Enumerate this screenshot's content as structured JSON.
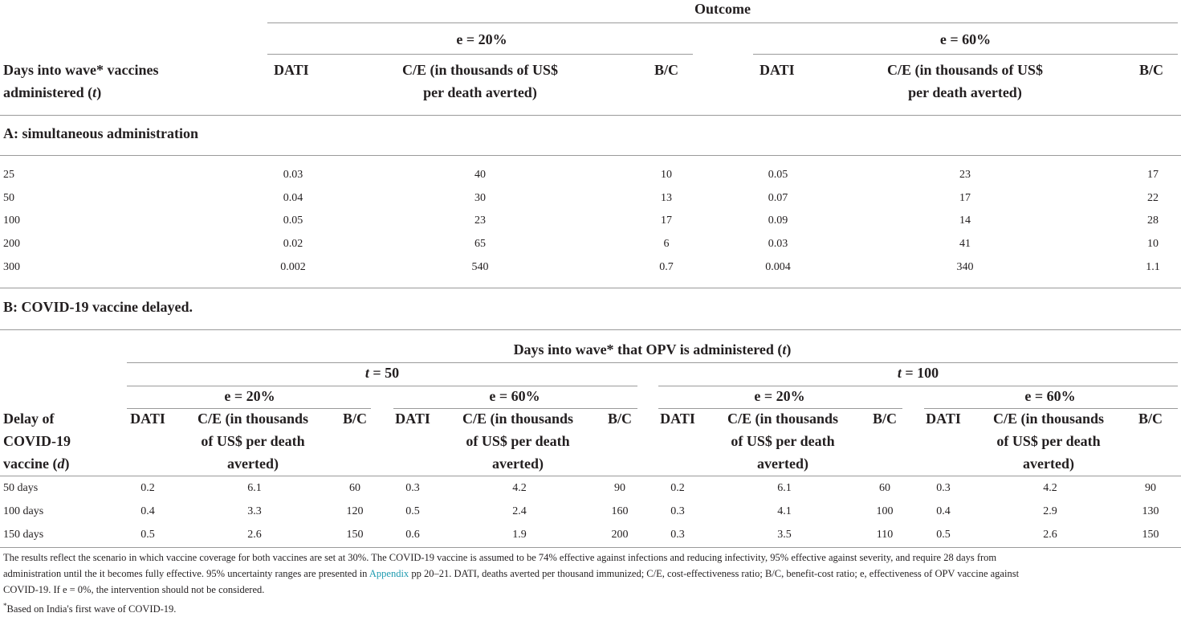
{
  "top": {
    "outcome": "Outcome",
    "e20": "e = 20%",
    "e60": "e = 60%",
    "rowhead_line1": "Days into wave* vaccines",
    "rowhead_line2_pre": "administered (",
    "rowhead_line2_var": "t",
    "rowhead_line2_post": ")",
    "col_dati": "DATI",
    "col_ce_line1": "C/E (in thousands of US$",
    "col_ce_line2": "per death averted)",
    "col_bc": "B/C"
  },
  "sectionA": {
    "title": "A: simultaneous administration",
    "rows": [
      {
        "t": "25",
        "d1": "0.03",
        "ce1": "40",
        "bc1": "10",
        "d2": "0.05",
        "ce2": "23",
        "bc2": "17"
      },
      {
        "t": "50",
        "d1": "0.04",
        "ce1": "30",
        "bc1": "13",
        "d2": "0.07",
        "ce2": "17",
        "bc2": "22"
      },
      {
        "t": "100",
        "d1": "0.05",
        "ce1": "23",
        "bc1": "17",
        "d2": "0.09",
        "ce2": "14",
        "bc2": "28"
      },
      {
        "t": "200",
        "d1": "0.02",
        "ce1": "65",
        "bc1": "6",
        "d2": "0.03",
        "ce2": "41",
        "bc2": "10"
      },
      {
        "t": "300",
        "d1": "0.002",
        "ce1": "540",
        "bc1": "0.7",
        "d2": "0.004",
        "ce2": "340",
        "bc2": "1.1"
      }
    ]
  },
  "sectionB": {
    "title": "B: COVID-19 vaccine delayed.",
    "days_pre": "Days into wave* that OPV is administered (",
    "days_var": "t",
    "days_post": ")",
    "t50_var": "t",
    "t50_val": " = 50",
    "t100_var": "t",
    "t100_val": " = 100",
    "e20": "e = 20%",
    "e60": "e = 60%",
    "rowhead_line1": "Delay of",
    "rowhead_line2": "COVID-19",
    "rowhead_line3_pre": "vaccine (",
    "rowhead_line3_var": "d",
    "rowhead_line3_post": ")",
    "col_dati": "DATI",
    "col_ce_line1": "C/E (in thousands",
    "col_ce_line2": "of US$ per death",
    "col_ce_line3": "averted)",
    "col_bc": "B/C",
    "rows": [
      {
        "delay": "50 days",
        "v": [
          [
            "0.2",
            "6.1",
            "60"
          ],
          [
            "0.3",
            "4.2",
            "90"
          ],
          [
            "0.2",
            "6.1",
            "60"
          ],
          [
            "0.3",
            "4.2",
            "90"
          ]
        ]
      },
      {
        "delay": "100 days",
        "v": [
          [
            "0.4",
            "3.3",
            "120"
          ],
          [
            "0.5",
            "2.4",
            "160"
          ],
          [
            "0.3",
            "4.1",
            "100"
          ],
          [
            "0.4",
            "2.9",
            "130"
          ]
        ]
      },
      {
        "delay": "150 days",
        "v": [
          [
            "0.5",
            "2.6",
            "150"
          ],
          [
            "0.6",
            "1.9",
            "200"
          ],
          [
            "0.3",
            "3.5",
            "110"
          ],
          [
            "0.5",
            "2.6",
            "150"
          ]
        ]
      }
    ]
  },
  "footnote": {
    "line1": "The results reflect the scenario in which vaccine coverage for both vaccines are set at 30%. The COVID-19 vaccine is assumed to be 74% effective against infections and reducing infectivity, 95% effective against severity, and require 28 days from",
    "line2_pre": "administration until the it becomes fully effective. 95% uncertainty ranges are presented in ",
    "line2_link": "Appendix",
    "line2_post": " pp 20–21. DATI, deaths averted per thousand immunized; C/E, cost-effectiveness ratio; B/C, benefit-cost ratio; e, effectiveness of OPV vaccine against",
    "line3": "COVID-19. If e = 0%, the intervention should not be considered.",
    "star_mark": "*",
    "star_text": "Based on India's first wave of COVID-19."
  },
  "colors": {
    "text": "#231f20",
    "rule": "#9a9a9a",
    "link": "#1f9bb0"
  }
}
